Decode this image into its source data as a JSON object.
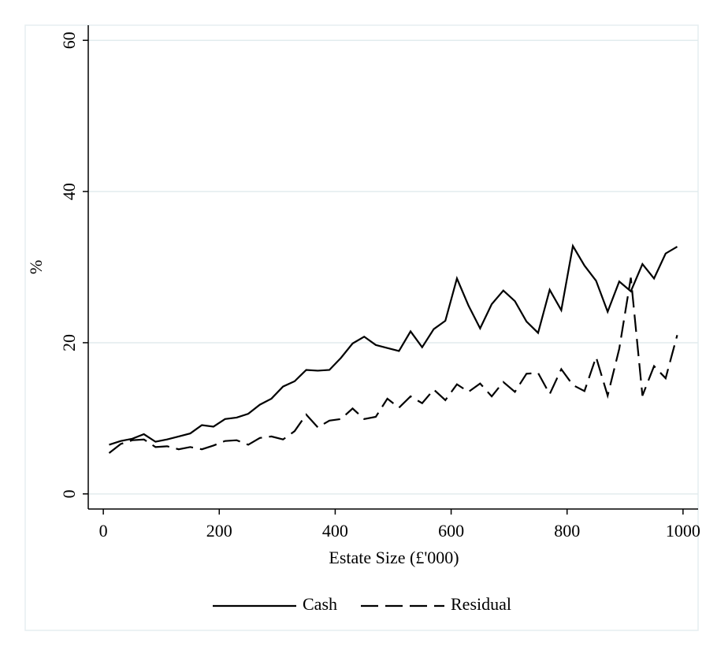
{
  "chart_data": {
    "type": "line",
    "x_label": "Estate Size (£'000)",
    "y_label": "%",
    "x": [
      10,
      30,
      50,
      70,
      90,
      110,
      130,
      150,
      170,
      190,
      210,
      230,
      250,
      270,
      290,
      310,
      330,
      350,
      370,
      390,
      410,
      430,
      450,
      470,
      490,
      510,
      530,
      550,
      570,
      590,
      610,
      630,
      650,
      670,
      690,
      710,
      730,
      750,
      770,
      790,
      810,
      830,
      850,
      870,
      890,
      910,
      930,
      950,
      970,
      990
    ],
    "series": [
      {
        "name": "Cash",
        "color": "#000000",
        "dash": "solid",
        "values": [
          6.5,
          7.0,
          7.3,
          7.9,
          6.9,
          7.2,
          7.6,
          8.0,
          9.1,
          8.9,
          9.9,
          10.1,
          10.6,
          11.8,
          12.6,
          14.2,
          14.9,
          16.4,
          16.3,
          16.4,
          18.0,
          19.9,
          20.8,
          19.7,
          19.3,
          18.9,
          21.5,
          19.4,
          21.8,
          22.9,
          28.5,
          24.9,
          21.9,
          25.1,
          26.9,
          25.5,
          22.8,
          21.3,
          27.0,
          24.3,
          32.8,
          30.2,
          28.2,
          24.1,
          28.1,
          26.8,
          30.4,
          28.5,
          31.8,
          32.7
        ]
      },
      {
        "name": "Residual",
        "color": "#000000",
        "dash": "dashed",
        "values": [
          5.4,
          6.6,
          7.1,
          7.2,
          6.2,
          6.3,
          5.9,
          6.2,
          5.9,
          6.4,
          7.0,
          7.1,
          6.5,
          7.4,
          7.6,
          7.2,
          8.3,
          10.5,
          8.8,
          9.7,
          9.9,
          11.3,
          9.9,
          10.2,
          12.6,
          11.4,
          12.9,
          12.0,
          13.8,
          12.4,
          14.5,
          13.5,
          14.6,
          12.9,
          14.8,
          13.5,
          15.9,
          16.0,
          13.2,
          16.5,
          14.4,
          13.6,
          18.1,
          13.0,
          19.2,
          28.6,
          13.0,
          16.9,
          15.3,
          21.0
        ]
      }
    ],
    "xlim": [
      -26,
      1026
    ],
    "ylim": [
      -2,
      62
    ],
    "xticks": [
      0,
      200,
      400,
      600,
      800,
      1000
    ],
    "yticks": [
      0,
      20,
      40,
      60
    ],
    "grid": true,
    "legend": "bottom"
  }
}
